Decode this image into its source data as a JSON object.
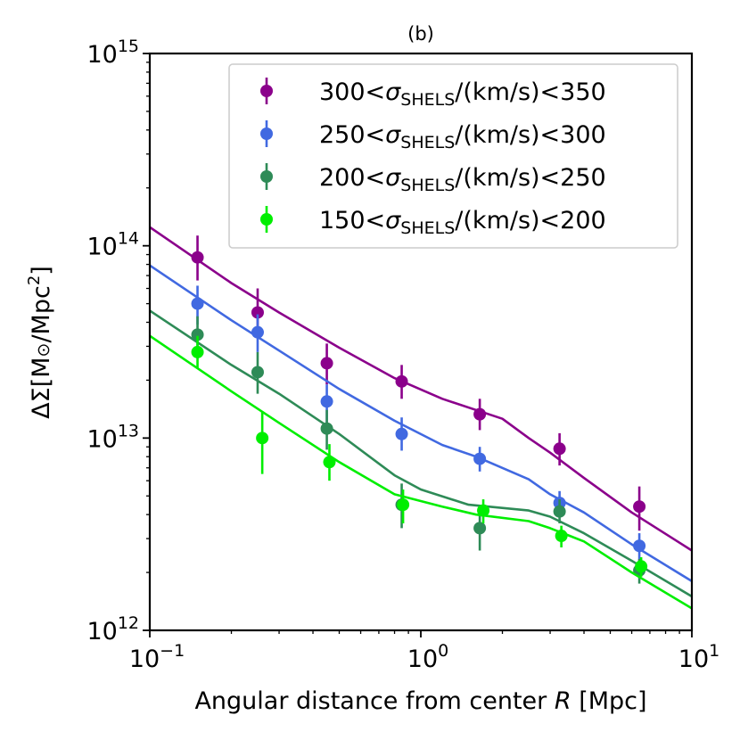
{
  "chart_data": {
    "type": "scatter",
    "title": "(b)",
    "xlabel": "Angular distance from center R [Mpc]",
    "ylabel": "ΔΣ[M⊙/Mpc2]",
    "xscale": "log",
    "yscale": "log",
    "xlim": [
      0.1,
      10
    ],
    "ylim": [
      1000000000000.0,
      1000000000000000.0
    ],
    "x_ticks": [
      {
        "value": 0.1,
        "base": "10",
        "exp": "−1"
      },
      {
        "value": 1,
        "base": "10",
        "exp": "0"
      },
      {
        "value": 10,
        "base": "10",
        "exp": "1"
      }
    ],
    "y_ticks": [
      {
        "value": 1000000000000.0,
        "base": "10",
        "exp": "12"
      },
      {
        "value": 10000000000000.0,
        "base": "10",
        "exp": "13"
      },
      {
        "value": 100000000000000.0,
        "base": "10",
        "exp": "14"
      },
      {
        "value": 1000000000000000.0,
        "base": "10",
        "exp": "15"
      }
    ],
    "legend_position": "top-right",
    "series": [
      {
        "name": "300<σSHELS/(km/s)<350",
        "label_lo": "300<",
        "label_sym": "σ",
        "label_sub": "SHELS",
        "label_hi": "/(km/s)<350",
        "color": "#8b008b",
        "points": [
          {
            "x": 0.15,
            "y": 87000000000000.0,
            "lo": 66000000000000.0,
            "hi": 113000000000000.0
          },
          {
            "x": 0.25,
            "y": 45000000000000.0,
            "lo": 34000000000000.0,
            "hi": 60000000000000.0
          },
          {
            "x": 0.45,
            "y": 24500000000000.0,
            "lo": 19000000000000.0,
            "hi": 31000000000000.0
          },
          {
            "x": 0.85,
            "y": 19700000000000.0,
            "lo": 16000000000000.0,
            "hi": 24000000000000.0
          },
          {
            "x": 1.65,
            "y": 13300000000000.0,
            "lo": 11000000000000.0,
            "hi": 16000000000000.0
          },
          {
            "x": 3.25,
            "y": 8800000000000.0,
            "lo": 7200000000000.0,
            "hi": 10600000000000.0
          },
          {
            "x": 6.4,
            "y": 4400000000000.0,
            "lo": 3300000000000.0,
            "hi": 5600000000000.0
          }
        ],
        "model": {
          "x": [
            0.1,
            0.2,
            0.3,
            0.5,
            0.8,
            1.2,
            2.0,
            2.5,
            3.0,
            4.0,
            6.0,
            10.0
          ],
          "y": [
            125000000000000.0,
            64000000000000.0,
            45000000000000.0,
            29500000000000.0,
            20500000000000.0,
            16000000000000.0,
            12600000000000.0,
            10000000000000.0,
            8400000000000.0,
            6200000000000.0,
            4100000000000.0,
            2600000000000.0
          ]
        }
      },
      {
        "name": "250<σSHELS/(km/s)<300",
        "label_lo": "250<",
        "label_sym": "σ",
        "label_sub": "SHELS",
        "label_hi": "/(km/s)<300",
        "color": "#4169e1",
        "points": [
          {
            "x": 0.15,
            "y": 50000000000000.0,
            "lo": 39000000000000.0,
            "hi": 62000000000000.0
          },
          {
            "x": 0.25,
            "y": 35500000000000.0,
            "lo": 28000000000000.0,
            "hi": 44000000000000.0
          },
          {
            "x": 0.45,
            "y": 15500000000000.0,
            "lo": 12000000000000.0,
            "hi": 19000000000000.0
          },
          {
            "x": 0.85,
            "y": 10500000000000.0,
            "lo": 8600000000000.0,
            "hi": 12800000000000.0
          },
          {
            "x": 1.65,
            "y": 7800000000000.0,
            "lo": 6700000000000.0,
            "hi": 9000000000000.0
          },
          {
            "x": 3.25,
            "y": 4600000000000.0,
            "lo": 3900000000000.0,
            "hi": 5300000000000.0
          },
          {
            "x": 6.4,
            "y": 2750000000000.0,
            "lo": 2300000000000.0,
            "hi": 3200000000000.0
          }
        ],
        "model": {
          "x": [
            0.1,
            0.2,
            0.3,
            0.5,
            0.8,
            1.2,
            1.6,
            2.5,
            3.0,
            4.0,
            6.0,
            10.0
          ],
          "y": [
            79000000000000.0,
            41000000000000.0,
            28500000000000.0,
            18000000000000.0,
            12300000000000.0,
            9200000000000.0,
            8000000000000.0,
            6100000000000.0,
            5100000000000.0,
            4100000000000.0,
            2800000000000.0,
            1800000000000.0
          ]
        }
      },
      {
        "name": "200<σSHELS/(km/s)<250",
        "label_lo": "200<",
        "label_sym": "σ",
        "label_sub": "SHELS",
        "label_hi": "/(km/s)<250",
        "color": "#2e8b57",
        "points": [
          {
            "x": 0.15,
            "y": 34500000000000.0,
            "lo": 26000000000000.0,
            "hi": 43000000000000.0
          },
          {
            "x": 0.25,
            "y": 22000000000000.0,
            "lo": 17000000000000.0,
            "hi": 28000000000000.0
          },
          {
            "x": 0.45,
            "y": 11200000000000.0,
            "lo": 8700000000000.0,
            "hi": 14000000000000.0
          },
          {
            "x": 0.85,
            "y": 4500000000000.0,
            "lo": 3400000000000.0,
            "hi": 5800000000000.0
          },
          {
            "x": 1.65,
            "y": 3400000000000.0,
            "lo": 2600000000000.0,
            "hi": 4300000000000.0
          },
          {
            "x": 3.25,
            "y": 4150000000000.0,
            "lo": 3600000000000.0,
            "hi": 4800000000000.0
          },
          {
            "x": 6.4,
            "y": 2050000000000.0,
            "lo": 1750000000000.0,
            "hi": 2350000000000.0
          }
        ],
        "model": {
          "x": [
            0.1,
            0.2,
            0.3,
            0.5,
            0.8,
            1.0,
            1.5,
            2.5,
            3.0,
            4.0,
            6.0,
            10.0
          ],
          "y": [
            46000000000000.0,
            24000000000000.0,
            17000000000000.0,
            10500000000000.0,
            6400000000000.0,
            5400000000000.0,
            4500000000000.0,
            4200000000000.0,
            3900000000000.0,
            3200000000000.0,
            2300000000000.0,
            1500000000000.0
          ]
        }
      },
      {
        "name": "150<σSHELS/(km/s)<200",
        "label_lo": "150<",
        "label_sym": "σ",
        "label_sub": "SHELS",
        "label_hi": "/(km/s)<200",
        "color": "#00ee00",
        "points": [
          {
            "x": 0.15,
            "y": 28000000000000.0,
            "lo": 23000000000000.0,
            "hi": 34000000000000.0
          },
          {
            "x": 0.26,
            "y": 10000000000000.0,
            "lo": 6500000000000.0,
            "hi": 13800000000000.0
          },
          {
            "x": 0.46,
            "y": 7500000000000.0,
            "lo": 6000000000000.0,
            "hi": 9300000000000.0
          },
          {
            "x": 0.86,
            "y": 4500000000000.0,
            "lo": 3600000000000.0,
            "hi": 5400000000000.0
          },
          {
            "x": 1.7,
            "y": 4200000000000.0,
            "lo": 3600000000000.0,
            "hi": 4800000000000.0
          },
          {
            "x": 3.3,
            "y": 3100000000000.0,
            "lo": 2700000000000.0,
            "hi": 3500000000000.0
          },
          {
            "x": 6.5,
            "y": 2150000000000.0,
            "lo": 1900000000000.0,
            "hi": 2400000000000.0
          }
        ],
        "model": {
          "x": [
            0.1,
            0.2,
            0.3,
            0.5,
            0.8,
            1.2,
            1.6,
            2.5,
            3.0,
            4.0,
            6.0,
            10.0
          ],
          "y": [
            34000000000000.0,
            17500000000000.0,
            12000000000000.0,
            7500000000000.0,
            5100000000000.0,
            4400000000000.0,
            4000000000000.0,
            3700000000000.0,
            3400000000000.0,
            2900000000000.0,
            2000000000000.0,
            1300000000000.0
          ]
        }
      }
    ]
  }
}
